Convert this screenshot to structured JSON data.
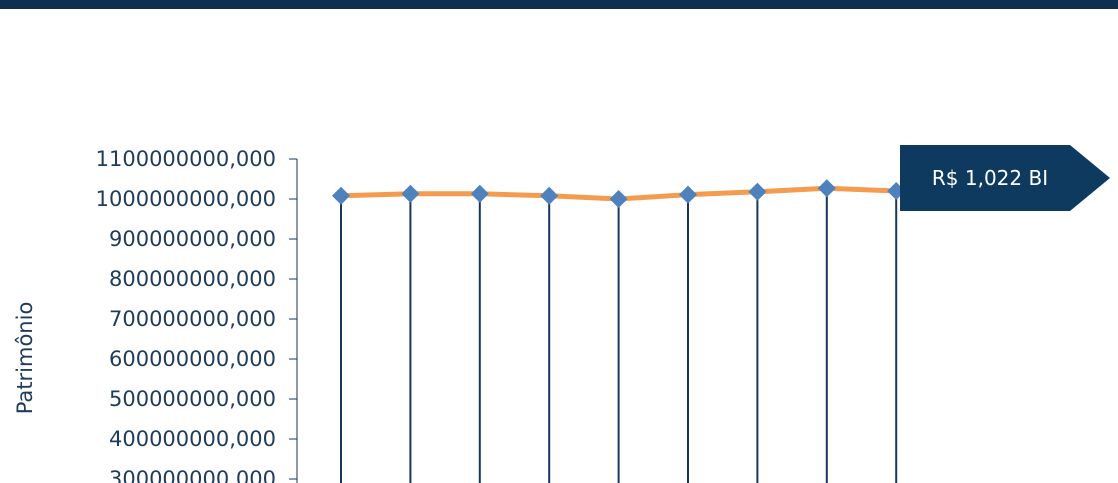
{
  "chart_data": {
    "type": "line",
    "ylabel": "Patrimônio",
    "ylim": [
      300000000,
      1100000000
    ],
    "y_ticks": [
      "1100000000,000",
      "1000000000,000",
      "900000000,000",
      "800000000,000",
      "700000000,000",
      "600000000,000",
      "500000000,000",
      "400000000,000",
      "300000000,000"
    ],
    "y_tick_values": [
      1100000000,
      1000000000,
      900000000,
      800000000,
      700000000,
      600000000,
      500000000,
      400000000,
      300000000
    ],
    "values": [
      1008000000,
      1013000000,
      1013000000,
      1008000000,
      1000000000,
      1011000000,
      1018000000,
      1027000000,
      1020000000
    ],
    "line_color": "#f39c4f",
    "marker_color": "#4f81bd",
    "stem_color": "#17375e",
    "callout": {
      "text": "R$ 1,022 BI",
      "color": "#0e3a5f"
    }
  },
  "colors": {
    "top_bar": "#0e2f4f",
    "axis_text": "#1f3c5c"
  }
}
